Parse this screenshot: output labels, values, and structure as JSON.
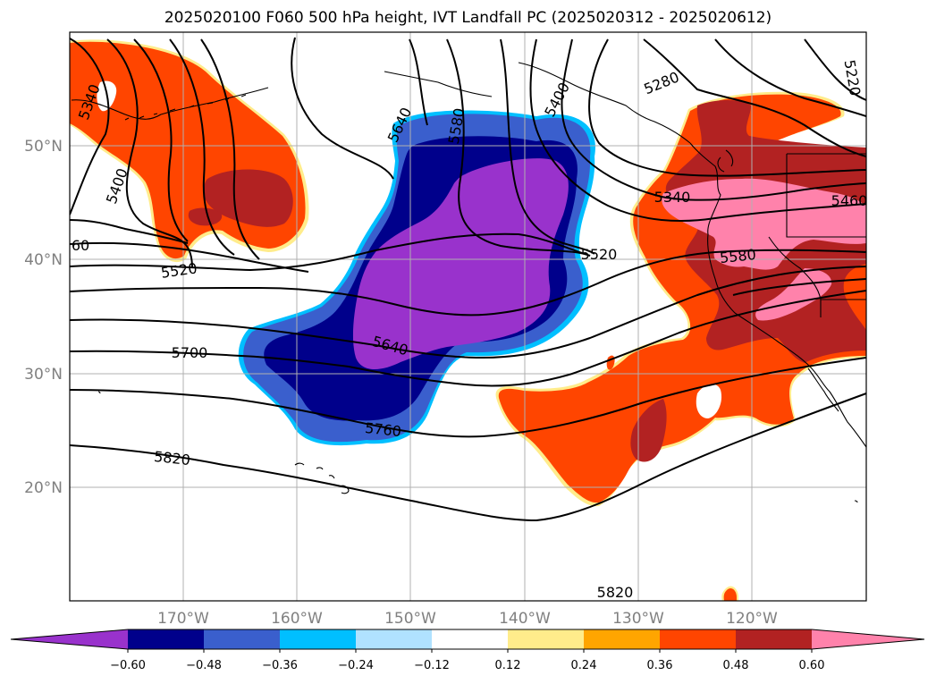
{
  "title": "2025020100 F060 500 hPa height, IVT Landfall PC (2025020312 - 2025020612)",
  "map": {
    "lat_labels": [
      "50°N",
      "40°N",
      "30°N",
      "20°N"
    ],
    "lon_labels": [
      "170°W",
      "160°W",
      "150°W",
      "140°W",
      "130°W",
      "120°W"
    ],
    "height_labels": [
      "5340",
      "5400",
      "5520",
      "60",
      "5700",
      "5820",
      "5640",
      "5580",
      "5400",
      "5280",
      "5220",
      "5340",
      "5460",
      "5520",
      "5580",
      "5640",
      "5760",
      "5820"
    ]
  },
  "colorbar": {
    "ticks": [
      "−0.60",
      "−0.48",
      "−0.36",
      "−0.24",
      "−0.12",
      "0.12",
      "0.24",
      "0.36",
      "0.48",
      "0.60"
    ],
    "colors": [
      "#9932cc",
      "#00008b",
      "#3a5fcd",
      "#00bfff",
      "#b0e2ff",
      "#ffffff",
      "#ffec8b",
      "#ffa500",
      "#ff4500",
      "#b22222",
      "#ff82ab"
    ]
  },
  "legend_colors": {
    "neg_strong": "#9932cc",
    "neg_2": "#00008b",
    "neg_3": "#3a5fcd",
    "pos_1": "#ff4500",
    "pos_2": "#b22222",
    "pos_3": "#ff82ab"
  }
}
